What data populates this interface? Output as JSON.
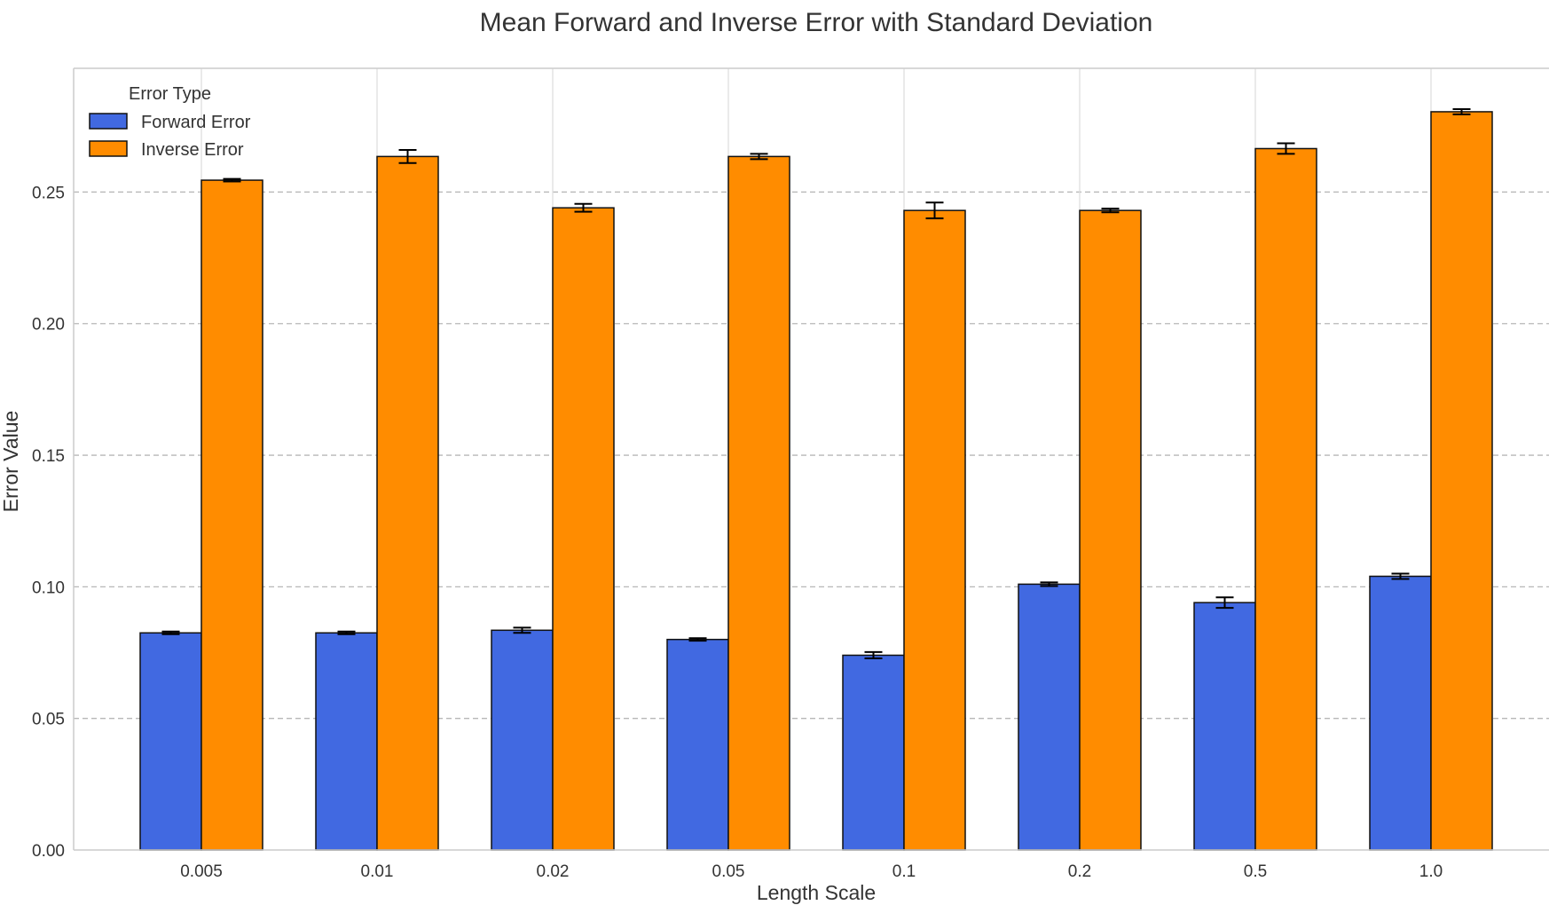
{
  "chart_data": {
    "type": "bar",
    "title": "Mean Forward and Inverse Error with Standard Deviation",
    "xlabel": "Length Scale",
    "ylabel": "Error Value",
    "categories": [
      "0.005",
      "0.01",
      "0.02",
      "0.05",
      "0.1",
      "0.2",
      "0.5",
      "1.0"
    ],
    "ylim": [
      0,
      0.297
    ],
    "yticks": [
      "0.00",
      "0.05",
      "0.10",
      "0.15",
      "0.20",
      "0.25"
    ],
    "ytick_values": [
      0,
      0.05,
      0.1,
      0.15,
      0.2,
      0.25
    ],
    "grid": true,
    "legend": {
      "title": "Error Type",
      "placement": "top-left"
    },
    "series": [
      {
        "name": "Forward Error",
        "color": "#4169e1",
        "values": [
          0.0825,
          0.0825,
          0.0835,
          0.08,
          0.074,
          0.101,
          0.094,
          0.104
        ],
        "errors": [
          0.0005,
          0.0005,
          0.001,
          0.0005,
          0.0012,
          0.0007,
          0.002,
          0.001
        ]
      },
      {
        "name": "Inverse Error",
        "color": "#ff8c00",
        "values": [
          0.2545,
          0.2635,
          0.244,
          0.2635,
          0.243,
          0.243,
          0.2665,
          0.2805
        ],
        "errors": [
          0.0005,
          0.0025,
          0.0015,
          0.001,
          0.003,
          0.0007,
          0.002,
          0.001
        ]
      }
    ]
  }
}
